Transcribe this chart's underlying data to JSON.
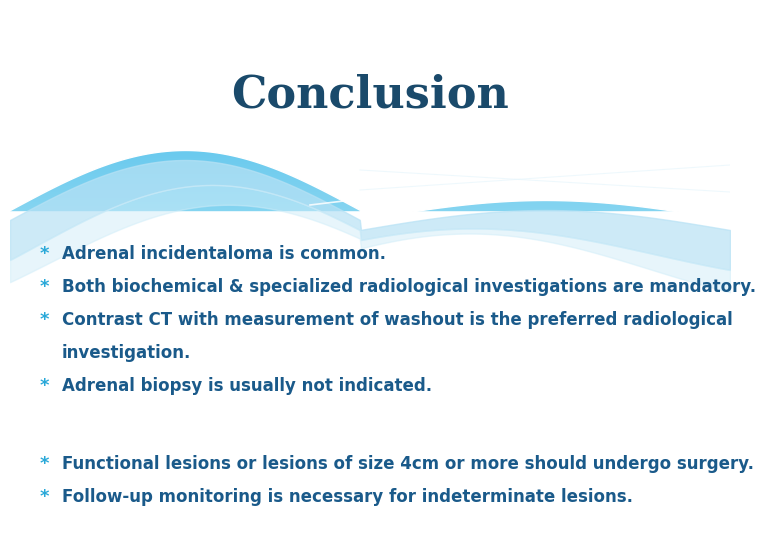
{
  "title": "Conclusion",
  "title_color": "#1a4a6b",
  "title_fontsize": 32,
  "bg_color": "#ffffff",
  "bullet_symbol": "*",
  "bullet_color": "#29a8d8",
  "text_color": "#1a5a8a",
  "bullet_fontsize": 12,
  "bullets_line1": [
    "Adrenal incidentaloma is common.",
    "Both biochemical & specialized radiological investigations are mandatory.",
    "Contrast CT with measurement of washout is the preferred radiological",
    "    investigation.",
    "Adrenal biopsy is usually not indicated."
  ],
  "bullets_line2": [
    "Functional lesions or lesions of size 4cm or more should undergo surgery.",
    "Follow-up monitoring is necessary for indeterminate lesions."
  ],
  "header_color_top": "#29b0e8",
  "header_color_bottom": "#85d4f0",
  "wave_white": "#ffffff",
  "wave_light": "#c5e8f8",
  "wave_lighter": "#ddf0fb"
}
